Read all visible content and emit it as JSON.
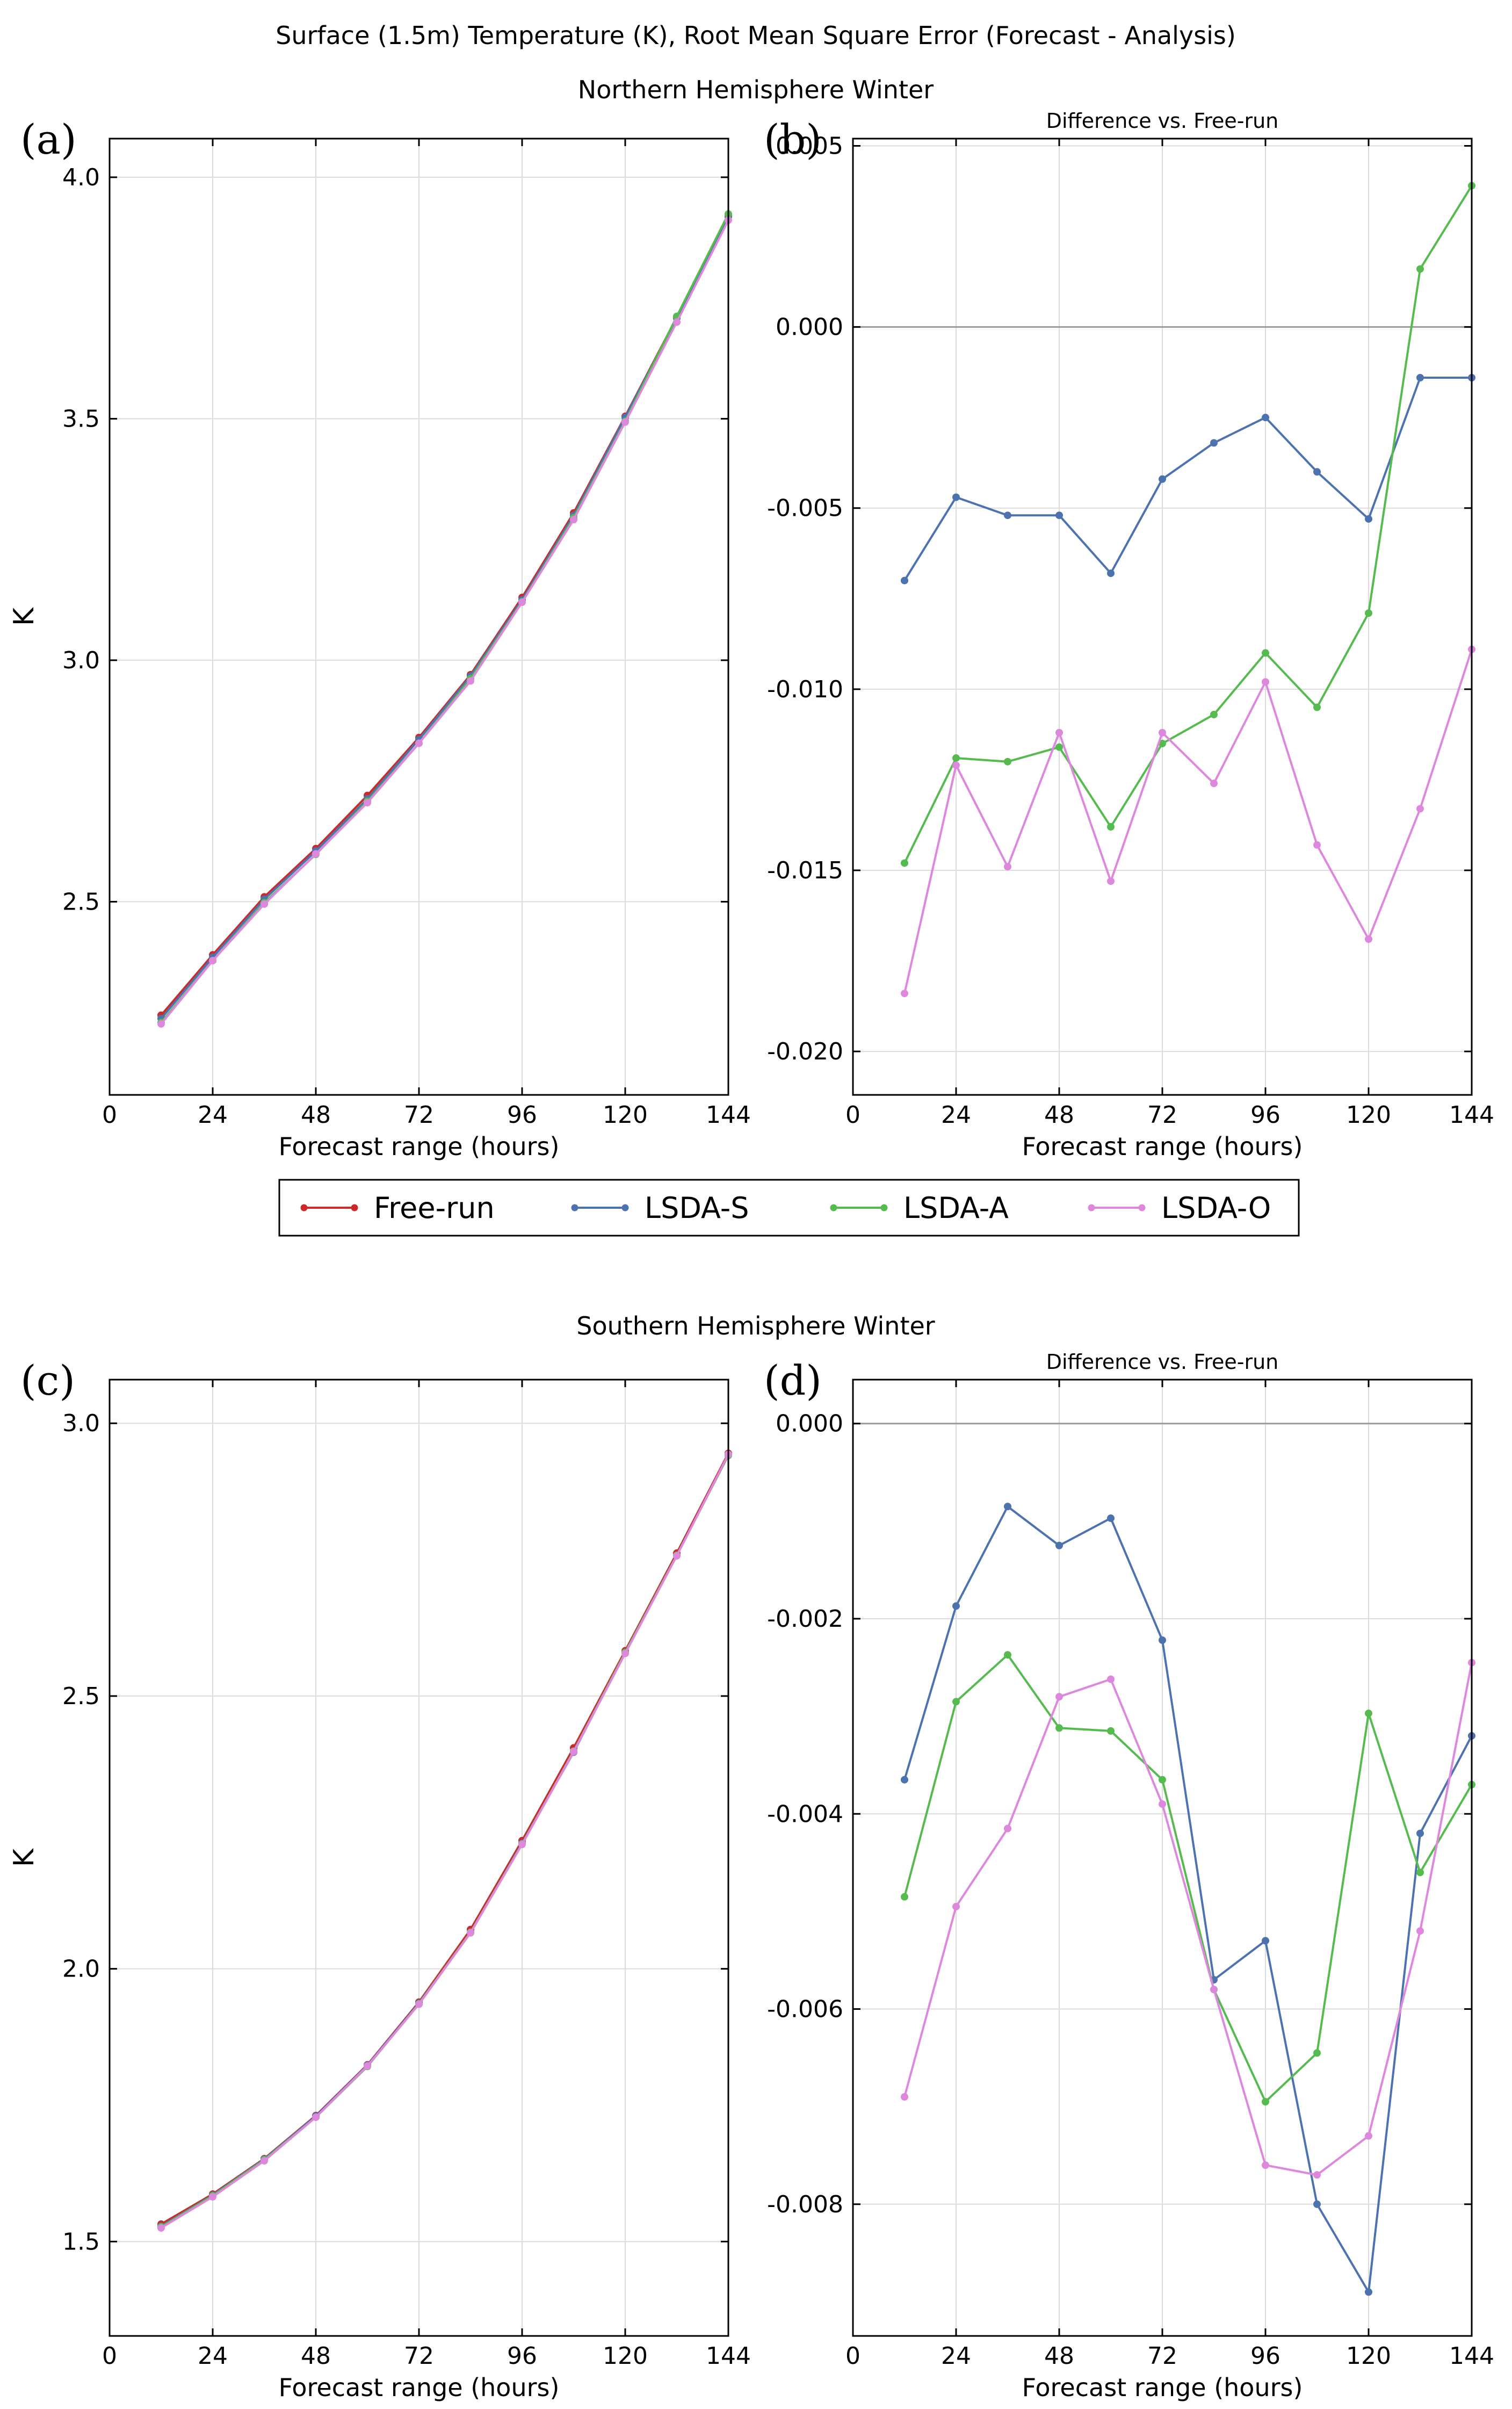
{
  "figure": {
    "title": "Surface (1.5m) Temperature (K), Root Mean Square Error (Forecast - Analysis)",
    "section_titles": [
      "Northern Hemisphere Winter",
      "Southern Hemisphere Winter"
    ]
  },
  "legend": {
    "entries": [
      {
        "name": "Free-run",
        "color": "#cc2a2a"
      },
      {
        "name": "LSDA-S",
        "color": "#4c72b0"
      },
      {
        "name": "LSDA-A",
        "color": "#55bb4f"
      },
      {
        "name": "LSDA-O",
        "color": "#dd88dd"
      }
    ]
  },
  "chart_data": [
    {
      "id": "a",
      "panel_label": "(a)",
      "type": "line",
      "title": "",
      "xlabel": "Forecast range (hours)",
      "ylabel": "K",
      "xlim": [
        0,
        144
      ],
      "ylim": [
        2.1,
        4.08
      ],
      "xticks": [
        0,
        24,
        48,
        72,
        96,
        120,
        144
      ],
      "xtick_labels": [
        "0",
        "24",
        "48",
        "72",
        "96",
        "120",
        "144"
      ],
      "yticks": [
        2.5,
        3.0,
        3.5,
        4.0
      ],
      "ytick_labels": [
        "2.5",
        "3.0",
        "3.5",
        "4.0"
      ],
      "x": [
        12,
        24,
        36,
        48,
        60,
        72,
        84,
        96,
        108,
        120,
        132,
        144
      ],
      "series": [
        {
          "name": "Free-run",
          "color": "#cc2a2a",
          "values": [
            2.265,
            2.39,
            2.51,
            2.61,
            2.72,
            2.84,
            2.97,
            3.13,
            3.305,
            3.505,
            3.71,
            3.92
          ]
        },
        {
          "name": "LSDA-S",
          "color": "#4c72b0",
          "values": [
            2.258,
            2.385,
            2.505,
            2.605,
            2.713,
            2.836,
            2.967,
            3.125,
            3.3,
            3.503,
            3.708,
            3.918
          ]
        },
        {
          "name": "LSDA-A",
          "color": "#55bb4f",
          "values": [
            2.25,
            2.378,
            2.498,
            2.598,
            2.708,
            2.828,
            2.962,
            3.121,
            3.295,
            3.495,
            3.712,
            3.924
          ]
        },
        {
          "name": "LSDA-O",
          "color": "#dd88dd",
          "values": [
            2.247,
            2.378,
            2.495,
            2.599,
            2.705,
            2.828,
            2.957,
            3.12,
            3.291,
            3.493,
            3.7,
            3.911
          ]
        }
      ]
    },
    {
      "id": "b",
      "panel_label": "(b)",
      "type": "line",
      "title": "Difference vs. Free-run",
      "xlabel": "Forecast range (hours)",
      "ylabel": "",
      "xlim": [
        0,
        144
      ],
      "ylim": [
        -0.0212,
        0.0052
      ],
      "zero_line": true,
      "xticks": [
        0,
        24,
        48,
        72,
        96,
        120,
        144
      ],
      "xtick_labels": [
        "0",
        "24",
        "48",
        "72",
        "96",
        "120",
        "144"
      ],
      "yticks": [
        -0.02,
        -0.015,
        -0.01,
        -0.005,
        0.0,
        0.005
      ],
      "ytick_labels": [
        "-0.020",
        "-0.015",
        "-0.010",
        "-0.005",
        "0.000",
        "0.005"
      ],
      "x": [
        12,
        24,
        36,
        48,
        60,
        72,
        84,
        96,
        108,
        120,
        132,
        144
      ],
      "series": [
        {
          "name": "LSDA-S",
          "color": "#4c72b0",
          "values": [
            -0.007,
            -0.0047,
            -0.0052,
            -0.0052,
            -0.0068,
            -0.0042,
            -0.0032,
            -0.0025,
            -0.004,
            -0.0053,
            -0.0014,
            -0.0014
          ]
        },
        {
          "name": "LSDA-A",
          "color": "#55bb4f",
          "values": [
            -0.0148,
            -0.0119,
            -0.012,
            -0.0116,
            -0.0138,
            -0.0115,
            -0.0107,
            -0.009,
            -0.0105,
            -0.0079,
            0.0016,
            0.0039
          ]
        },
        {
          "name": "LSDA-O",
          "color": "#dd88dd",
          "values": [
            -0.0184,
            -0.0121,
            -0.0149,
            -0.0112,
            -0.0153,
            -0.0112,
            -0.0126,
            -0.0098,
            -0.0143,
            -0.0169,
            -0.0133,
            -0.0089
          ]
        }
      ]
    },
    {
      "id": "c",
      "panel_label": "(c)",
      "type": "line",
      "title": "",
      "xlabel": "Forecast range (hours)",
      "ylabel": "K",
      "xlim": [
        0,
        144
      ],
      "ylim": [
        1.327,
        3.08
      ],
      "xticks": [
        0,
        24,
        48,
        72,
        96,
        120,
        144
      ],
      "xtick_labels": [
        "0",
        "24",
        "48",
        "72",
        "96",
        "120",
        "144"
      ],
      "yticks": [
        1.5,
        2.0,
        2.5,
        3.0
      ],
      "ytick_labels": [
        "1.5",
        "2.0",
        "2.5",
        "3.0"
      ],
      "x": [
        12,
        24,
        36,
        48,
        60,
        72,
        84,
        96,
        108,
        120,
        132,
        144
      ],
      "series": [
        {
          "name": "Free-run",
          "color": "#cc2a2a",
          "values": [
            1.532,
            1.587,
            1.652,
            1.731,
            1.824,
            1.939,
            2.072,
            2.235,
            2.405,
            2.583,
            2.762,
            2.945
          ]
        },
        {
          "name": "LSDA-S",
          "color": "#4c72b0",
          "values": [
            1.528,
            1.585,
            1.651,
            1.73,
            1.823,
            1.937,
            2.066,
            2.23,
            2.397,
            2.58,
            2.758,
            2.942
          ]
        },
        {
          "name": "LSDA-A",
          "color": "#55bb4f",
          "values": [
            1.527,
            1.584,
            1.65,
            1.728,
            1.821,
            1.936,
            2.067,
            2.229,
            2.399,
            2.58,
            2.758,
            2.941
          ]
        },
        {
          "name": "LSDA-O",
          "color": "#dd88dd",
          "values": [
            1.525,
            1.582,
            1.648,
            1.728,
            1.822,
            1.935,
            2.066,
            2.228,
            2.398,
            2.578,
            2.757,
            2.943
          ]
        }
      ]
    },
    {
      "id": "d",
      "panel_label": "(d)",
      "type": "line",
      "title": "Difference vs. Free-run",
      "xlabel": "Forecast range (hours)",
      "ylabel": "",
      "xlim": [
        0,
        144
      ],
      "ylim": [
        -0.00935,
        0.00045
      ],
      "zero_line": true,
      "xticks": [
        0,
        24,
        48,
        72,
        96,
        120,
        144
      ],
      "xtick_labels": [
        "0",
        "24",
        "48",
        "72",
        "96",
        "120",
        "144"
      ],
      "yticks": [
        -0.008,
        -0.006,
        -0.004,
        -0.002,
        0.0
      ],
      "ytick_labels": [
        "-0.008",
        "-0.006",
        "-0.004",
        "-0.002",
        "0.000"
      ],
      "x": [
        12,
        24,
        36,
        48,
        60,
        72,
        84,
        96,
        108,
        120,
        132,
        144
      ],
      "series": [
        {
          "name": "LSDA-S",
          "color": "#4c72b0",
          "values": [
            -0.00365,
            -0.00187,
            -0.00085,
            -0.00125,
            -0.00097,
            -0.00222,
            -0.0057,
            -0.0053,
            -0.008,
            -0.0089,
            -0.0042,
            -0.0032
          ]
        },
        {
          "name": "LSDA-A",
          "color": "#55bb4f",
          "values": [
            -0.00485,
            -0.00285,
            -0.00237,
            -0.00312,
            -0.00315,
            -0.00365,
            -0.0058,
            -0.00695,
            -0.00645,
            -0.00297,
            -0.0046,
            -0.0037
          ]
        },
        {
          "name": "LSDA-O",
          "color": "#dd88dd",
          "values": [
            -0.0069,
            -0.00495,
            -0.00415,
            -0.0028,
            -0.00262,
            -0.0039,
            -0.0058,
            -0.0076,
            -0.0077,
            -0.0073,
            -0.0052,
            -0.00245
          ]
        }
      ]
    }
  ]
}
